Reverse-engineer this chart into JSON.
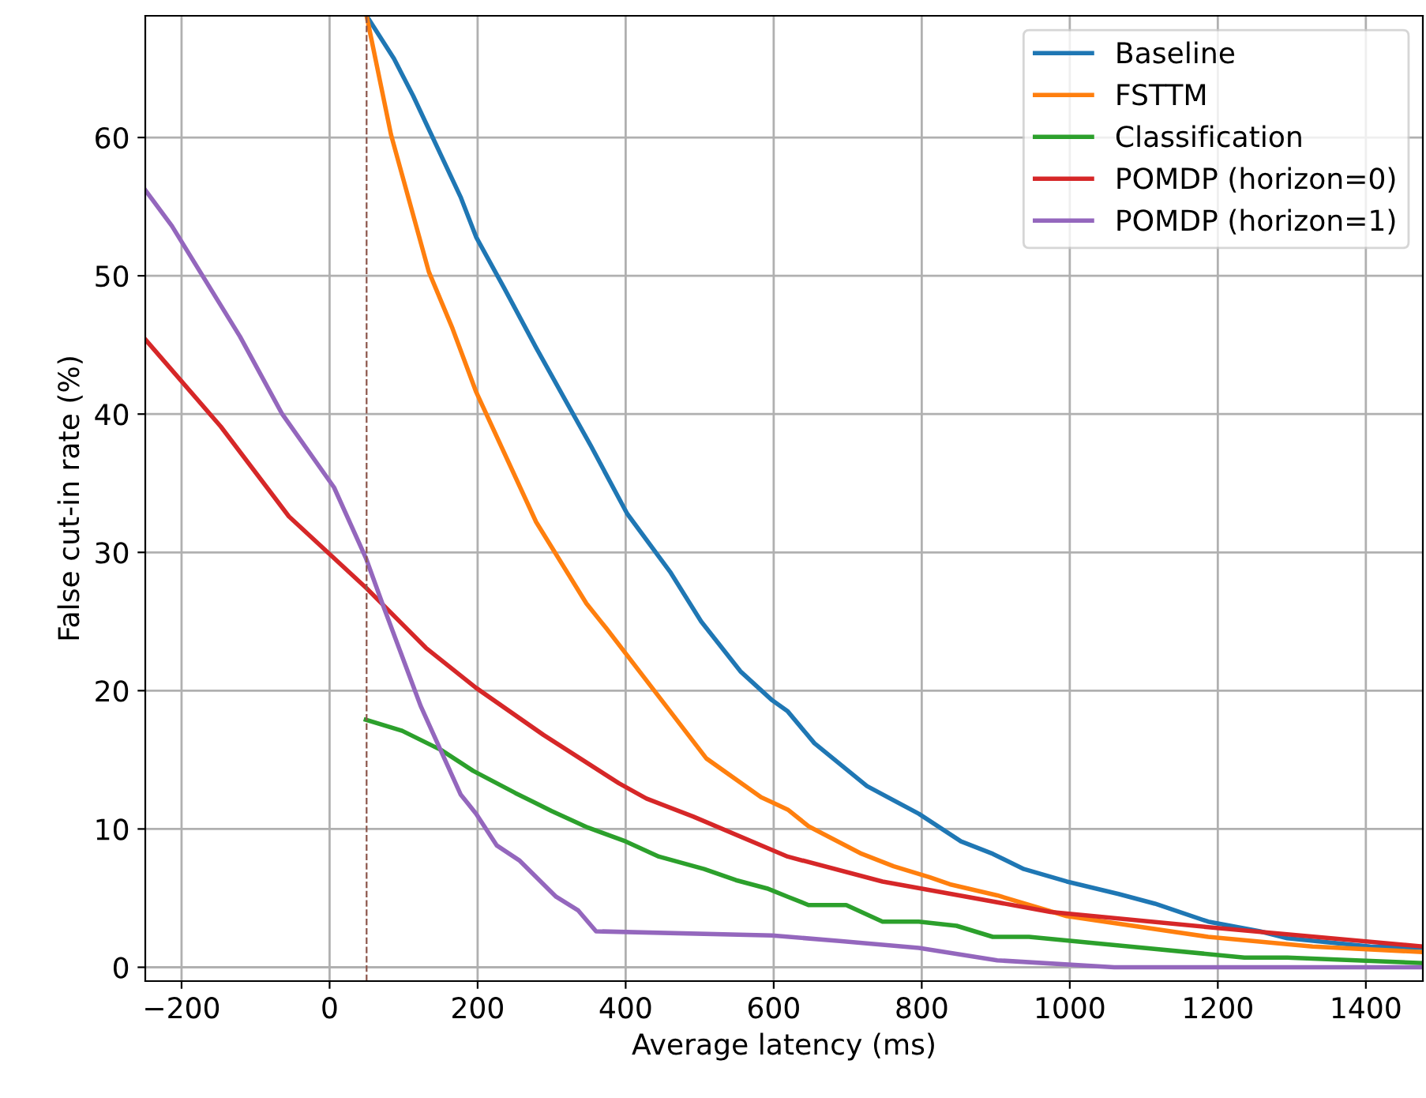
{
  "chart_data": {
    "type": "line",
    "xlabel": "Average latency (ms)",
    "ylabel": "False cut-in rate (%)",
    "xlim": [
      -249,
      1477
    ],
    "ylim": [
      -1,
      68.8
    ],
    "xticks": [
      {
        "value": -200,
        "label": "−200"
      },
      0,
      200,
      400,
      600,
      800,
      1000,
      1200,
      1400
    ],
    "yticks": [
      0,
      10,
      20,
      30,
      40,
      50,
      60
    ],
    "grid": true,
    "legend": "top right",
    "line_style": "solid",
    "marker": "none",
    "ref_lines": [
      {
        "axis": "x",
        "value": 50,
        "label": null,
        "color": "#8c564b",
        "line_style": "dashed"
      }
    ],
    "series": [
      {
        "name": "Baseline",
        "color": "#1f77b4",
        "x": [
          50,
          87,
          113,
          177,
          198,
          236,
          279,
          353,
          402,
          460,
          502,
          555,
          598,
          619,
          655,
          726,
          796,
          853,
          896,
          938,
          996,
          1066,
          1115,
          1187,
          1257,
          1294,
          1406,
          1477
        ],
        "values": [
          68.8,
          65.7,
          63,
          55.7,
          52.8,
          49.1,
          44.8,
          37.7,
          32.8,
          28.6,
          25,
          21.4,
          19.3,
          18.5,
          16.2,
          13.1,
          11.1,
          9.1,
          8.2,
          7.1,
          6.2,
          5.3,
          4.6,
          3.3,
          2.6,
          2.1,
          1.5,
          1.4
        ]
      },
      {
        "name": "FSTTM",
        "color": "#ff7f0e",
        "x": [
          50,
          83,
          134,
          166,
          198,
          279,
          347,
          374,
          443,
          509,
          583,
          619,
          647,
          719,
          762,
          811,
          838,
          902,
          996,
          1187,
          1328,
          1477
        ],
        "values": [
          68.8,
          60.2,
          50.3,
          46.2,
          41.6,
          32.2,
          26.3,
          24.5,
          19.7,
          15.1,
          12.3,
          11.4,
          10.2,
          8.2,
          7.3,
          6.5,
          6.0,
          5.2,
          3.7,
          2.2,
          1.5,
          1.1
        ]
      },
      {
        "name": "Classification",
        "color": "#2ca02c",
        "x": [
          49,
          98,
          151,
          194,
          251,
          300,
          349,
          400,
          445,
          506,
          549,
          591,
          619,
          647,
          698,
          747,
          796,
          847,
          896,
          945,
          1081,
          1236,
          1294,
          1477
        ],
        "values": [
          17.9,
          17.1,
          15.7,
          14.2,
          12.6,
          11.3,
          10.1,
          9.1,
          8.0,
          7.1,
          6.3,
          5.7,
          5.1,
          4.5,
          4.5,
          3.3,
          3.3,
          3.0,
          2.2,
          2.2,
          1.5,
          0.7,
          0.7,
          0.3
        ]
      },
      {
        "name": "POMDP (horizon=0)",
        "color": "#d62728",
        "x": [
          -249,
          -147,
          -55,
          50,
          130,
          198,
          289,
          391,
          428,
          491,
          619,
          747,
          974,
          1187,
          1477
        ],
        "values": [
          45.4,
          39.1,
          32.6,
          27.4,
          23.1,
          20.2,
          16.8,
          13.3,
          12.2,
          10.9,
          8.0,
          6.2,
          4.0,
          2.9,
          1.5
        ]
      },
      {
        "name": "POMDP (horizon=1)",
        "color": "#9467bd",
        "x": [
          -249,
          -213,
          -121,
          -64,
          6,
          49,
          72,
          123,
          177,
          198,
          226,
          257,
          306,
          336,
          360,
          598,
          689,
          796,
          902,
          1060,
          1477
        ],
        "values": [
          56.2,
          53.6,
          45.6,
          40.0,
          34.7,
          29.6,
          26.2,
          18.9,
          12.5,
          11.1,
          8.8,
          7.7,
          5.1,
          4.1,
          2.6,
          2.3,
          1.9,
          1.4,
          0.5,
          0.0,
          0.0
        ]
      }
    ]
  }
}
